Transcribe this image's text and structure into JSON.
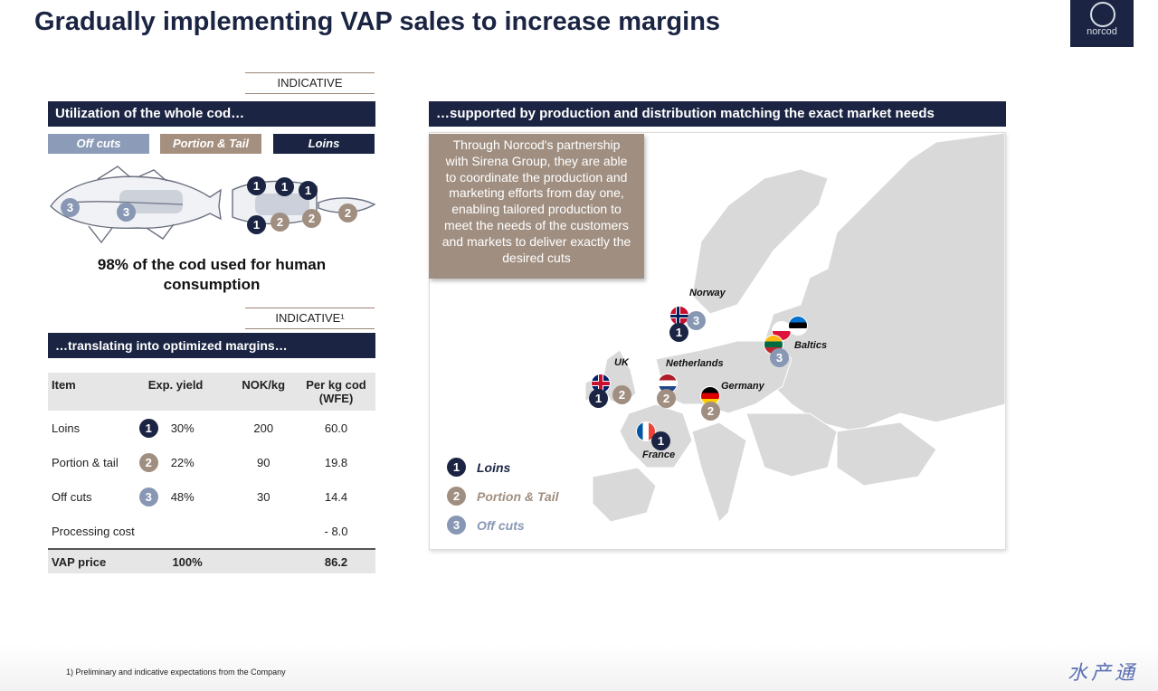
{
  "title": "Gradually implementing VAP sales to increase margins",
  "logo": {
    "text": "norcod"
  },
  "left": {
    "indicative_label": "INDICATIVE",
    "section_title": "Utilization of the whole cod…",
    "chips": [
      "Off cuts",
      "Portion & Tail",
      "Loins"
    ],
    "fish_numbers": [
      "3",
      "3",
      "1",
      "1",
      "1",
      "1",
      "2",
      "2",
      "2"
    ],
    "caption_line1": "98% of the cod used for human",
    "caption_line2": "consumption",
    "indicative2_label": "INDICATIVE¹",
    "section2_title": "…translating into optimized margins…"
  },
  "table": {
    "headers": [
      "Item",
      "Exp. yield",
      "NOK/kg",
      "Per kg cod (WFE)"
    ],
    "rows": [
      {
        "item": "Loins",
        "badge": "1",
        "yield": "30%",
        "nok": "200",
        "perkg": "60.0"
      },
      {
        "item": "Portion & tail",
        "badge": "2",
        "yield": "22%",
        "nok": "90",
        "perkg": "19.8"
      },
      {
        "item": "Off cuts",
        "badge": "3",
        "yield": "48%",
        "nok": "30",
        "perkg": "14.4"
      },
      {
        "item": "Processing cost",
        "badge": "",
        "yield": "",
        "nok": "",
        "perkg": "- 8.0"
      }
    ],
    "total": {
      "item": "VAP price",
      "yield": "100%",
      "nok": "",
      "perkg": "86.2"
    }
  },
  "right": {
    "section_title": "…supported by production and distribution matching the exact market needs",
    "callout_lines": [
      "Through Norcod's partnership",
      "with Sirena Group, they are able",
      "to coordinate the production and",
      "marketing efforts from day one,",
      "enabling tailored production to",
      "meet the needs of the customers",
      "and markets to deliver exactly the",
      "desired cuts"
    ],
    "countries": {
      "norway": "Norway",
      "baltics": "Baltics",
      "uk": "UK",
      "netherlands": "Netherlands",
      "germany": "Germany",
      "france": "France"
    },
    "markers": {
      "norway": [
        "1",
        "3"
      ],
      "baltics": [
        "3"
      ],
      "uk": [
        "1",
        "2"
      ],
      "netherlands": [
        "2"
      ],
      "germany": [
        "2"
      ],
      "france": [
        "1"
      ]
    },
    "legend": [
      {
        "num": "1",
        "label": "Loins"
      },
      {
        "num": "2",
        "label": "Portion & Tail"
      },
      {
        "num": "3",
        "label": "Off cuts"
      }
    ]
  },
  "footnote": "1) Preliminary and indicative expectations from the Company",
  "watermark": "水产通",
  "colors": {
    "navy": "#1b2543",
    "taupe": "#a08f81",
    "steel": "#8898b4",
    "chip_offcuts": "#8c9cb8",
    "chip_portion": "#a58f7e"
  }
}
